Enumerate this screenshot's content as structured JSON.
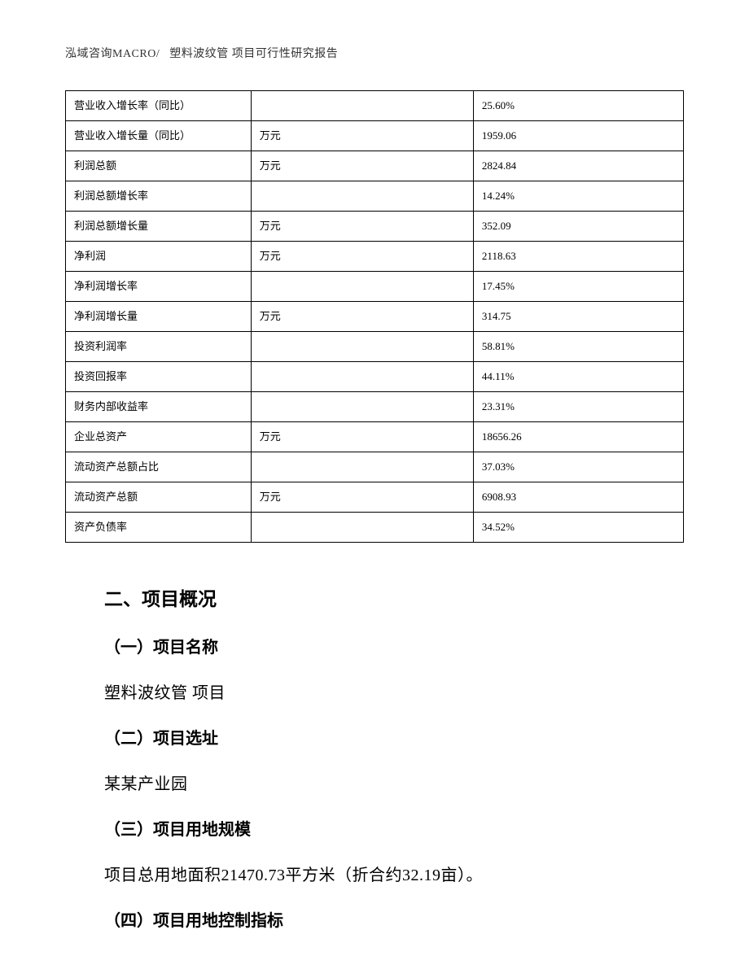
{
  "header": {
    "left": "泓域咨询MACRO/",
    "right": "塑料波纹管 项目可行性研究报告"
  },
  "table": {
    "rows": [
      {
        "name": "营业收入增长率（同比）",
        "unit": "",
        "value": "25.60%"
      },
      {
        "name": "营业收入增长量（同比）",
        "unit": "万元",
        "value": "1959.06"
      },
      {
        "name": "利润总额",
        "unit": "万元",
        "value": "2824.84"
      },
      {
        "name": "利润总额增长率",
        "unit": "",
        "value": "14.24%"
      },
      {
        "name": "利润总额增长量",
        "unit": "万元",
        "value": "352.09"
      },
      {
        "name": "净利润",
        "unit": "万元",
        "value": "2118.63"
      },
      {
        "name": "净利润增长率",
        "unit": "",
        "value": "17.45%"
      },
      {
        "name": "净利润增长量",
        "unit": "万元",
        "value": "314.75"
      },
      {
        "name": "投资利润率",
        "unit": "",
        "value": "58.81%"
      },
      {
        "name": "投资回报率",
        "unit": "",
        "value": "44.11%"
      },
      {
        "name": "财务内部收益率",
        "unit": "",
        "value": "23.31%"
      },
      {
        "name": "企业总资产",
        "unit": "万元",
        "value": "18656.26"
      },
      {
        "name": "流动资产总额占比",
        "unit": "",
        "value": "37.03%"
      },
      {
        "name": "流动资产总额",
        "unit": "万元",
        "value": "6908.93"
      },
      {
        "name": "资产负债率",
        "unit": "",
        "value": "34.52%"
      }
    ]
  },
  "sections": {
    "title": "二、项目概况",
    "s1": {
      "heading": "（一）项目名称",
      "text": "塑料波纹管 项目"
    },
    "s2": {
      "heading": "（二）项目选址",
      "text": "某某产业园"
    },
    "s3": {
      "heading": "（三）项目用地规模",
      "text": "项目总用地面积21470.73平方米（折合约32.19亩）。"
    },
    "s4": {
      "heading": "（四）项目用地控制指标"
    }
  }
}
